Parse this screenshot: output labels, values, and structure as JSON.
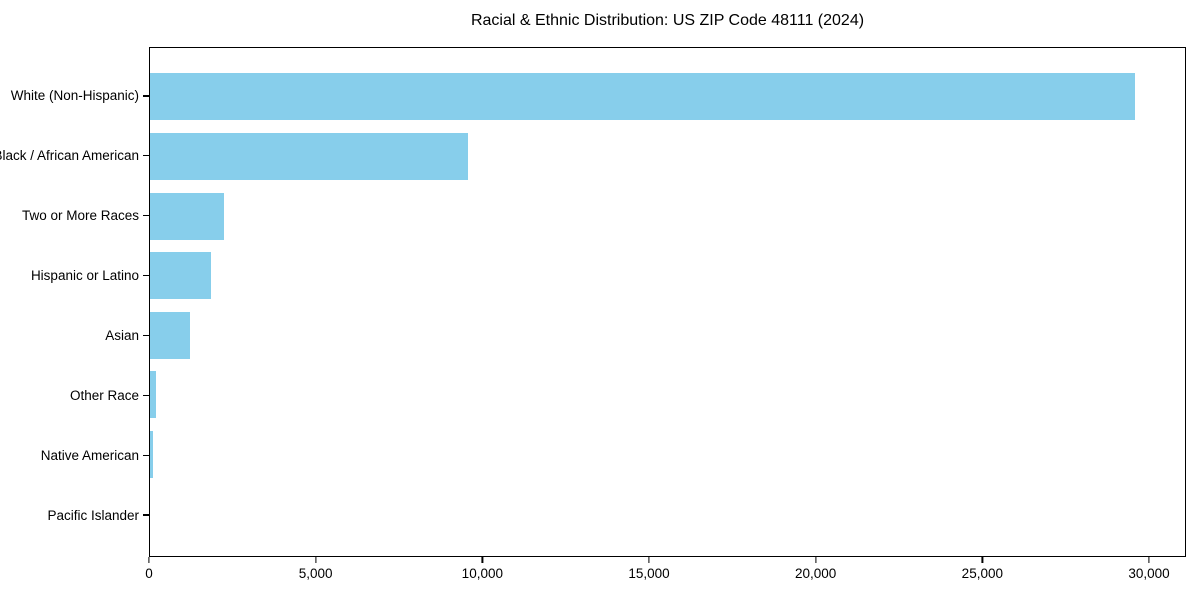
{
  "page": {
    "background": "#ffffff"
  },
  "chart_data": {
    "type": "bar",
    "orientation": "horizontal",
    "title": "Racial & Ethnic Distribution: US ZIP Code 48111 (2024)",
    "categories": [
      "White (Non-Hispanic)",
      "Black / African American",
      "Two or More Races",
      "Hispanic or Latino",
      "Asian",
      "Other Race",
      "Native American",
      "Pacific Islander"
    ],
    "values": [
      29610,
      9570,
      2220,
      1830,
      1190,
      170,
      90,
      0
    ],
    "xlabel": "",
    "ylabel": "",
    "xlim": [
      0,
      31110
    ],
    "xticks": [
      0,
      5000,
      10000,
      15000,
      20000,
      25000,
      30000
    ],
    "xtick_labels": [
      "0",
      "5,000",
      "10,000",
      "15,000",
      "20,000",
      "25,000",
      "30,000"
    ],
    "bar_color": "#87CEEB",
    "axis_color": "#000000",
    "text_color": "#000000",
    "grid": false,
    "legend": null
  }
}
